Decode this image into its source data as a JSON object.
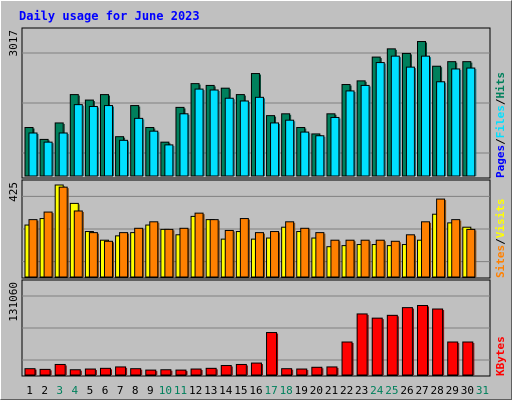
{
  "chart_data": [
    {
      "panel": "hits-files-pages",
      "type": "bar",
      "title": "Daily usage for June 2023",
      "ymax_label": "3017",
      "legend": [
        "Pages",
        "Files",
        "Hits"
      ],
      "x": [
        1,
        2,
        3,
        4,
        5,
        6,
        7,
        8,
        9,
        10,
        11,
        12,
        13,
        14,
        15,
        16,
        17,
        18,
        19,
        20,
        21,
        22,
        23,
        24,
        25,
        26,
        27,
        28,
        29,
        30
      ],
      "series": [
        {
          "name": "Hits",
          "color": "#00805c",
          "values": [
            1060,
            800,
            1160,
            1780,
            1660,
            1780,
            860,
            1540,
            1060,
            740,
            1500,
            2020,
            1980,
            1920,
            1780,
            2240,
            1320,
            1360,
            1060,
            920,
            1360,
            2000,
            2080,
            2600,
            2780,
            2680,
            2940,
            2400,
            2500,
            2500
          ]
        },
        {
          "name": "Files",
          "color": "#00e0ff",
          "values": [
            940,
            740,
            940,
            1560,
            1520,
            1540,
            780,
            1260,
            980,
            680,
            1360,
            1900,
            1880,
            1700,
            1640,
            1720,
            1160,
            1220,
            960,
            880,
            1280,
            1860,
            1980,
            2480,
            2620,
            2380,
            2620,
            2060,
            2340,
            2360
          ]
        },
        {
          "name": "Pages",
          "color": "#0000ff",
          "values": [
            0,
            0,
            0,
            0,
            0,
            0,
            0,
            0,
            0,
            0,
            0,
            0,
            0,
            0,
            0,
            0,
            0,
            0,
            0,
            0,
            0,
            0,
            0,
            0,
            0,
            0,
            0,
            0,
            0,
            0
          ]
        }
      ]
    },
    {
      "panel": "visits-sites",
      "type": "bar",
      "ymax_label": "425",
      "legend": [
        "Sites",
        "Visits"
      ],
      "x": [
        1,
        2,
        3,
        4,
        5,
        6,
        7,
        8,
        9,
        10,
        11,
        12,
        13,
        14,
        15,
        16,
        17,
        18,
        19,
        20,
        21,
        22,
        23,
        24,
        25,
        26,
        27,
        28,
        29,
        30
      ],
      "series": [
        {
          "name": "Visits",
          "color": "#ffff00",
          "values": [
            240,
            270,
            425,
            340,
            210,
            170,
            190,
            205,
            240,
            220,
            195,
            280,
            265,
            175,
            210,
            175,
            180,
            230,
            210,
            180,
            140,
            145,
            150,
            150,
            145,
            150,
            170,
            290,
            250,
            230
          ]
        },
        {
          "name": "Sites",
          "color": "#ff8000",
          "values": [
            265,
            300,
            415,
            305,
            205,
            165,
            205,
            225,
            255,
            220,
            225,
            295,
            265,
            215,
            270,
            205,
            210,
            255,
            225,
            205,
            170,
            170,
            170,
            170,
            165,
            195,
            255,
            360,
            265,
            220
          ]
        }
      ]
    },
    {
      "panel": "kbytes",
      "type": "bar",
      "ymax_label": "131060",
      "legend": [
        "KBytes"
      ],
      "x": [
        1,
        2,
        3,
        4,
        5,
        6,
        7,
        8,
        9,
        10,
        11,
        12,
        13,
        14,
        15,
        16,
        17,
        18,
        19,
        20,
        21,
        22,
        23,
        24,
        25,
        26,
        27,
        28,
        29,
        30
      ],
      "series": [
        {
          "name": "KBytes",
          "color": "#ff0000",
          "values": [
            9000,
            8000,
            15000,
            7500,
            8500,
            9500,
            11500,
            9000,
            7000,
            7500,
            7000,
            8500,
            9500,
            13500,
            15000,
            17000,
            60500,
            9000,
            8500,
            11000,
            11500,
            47000,
            87000,
            81000,
            85000,
            96000,
            99000,
            94000,
            47000,
            47000
          ]
        }
      ]
    }
  ],
  "x_axis": {
    "labels": [
      "1",
      "2",
      "3",
      "4",
      "5",
      "6",
      "7",
      "8",
      "9",
      "10",
      "11",
      "12",
      "13",
      "14",
      "15",
      "16",
      "17",
      "18",
      "19",
      "20",
      "21",
      "22",
      "23",
      "24",
      "25",
      "26",
      "27",
      "28",
      "29",
      "30",
      "31"
    ],
    "weekend_days": [
      3,
      4,
      10,
      11,
      17,
      18,
      24,
      25,
      31
    ],
    "weekday_color": "#000000",
    "weekend_color": "#00805c"
  },
  "colors": {
    "background": "#c0c0c0",
    "title": "#0000ff",
    "separator_legend": "#000000",
    "kbytes_legend": "#ff0000"
  }
}
